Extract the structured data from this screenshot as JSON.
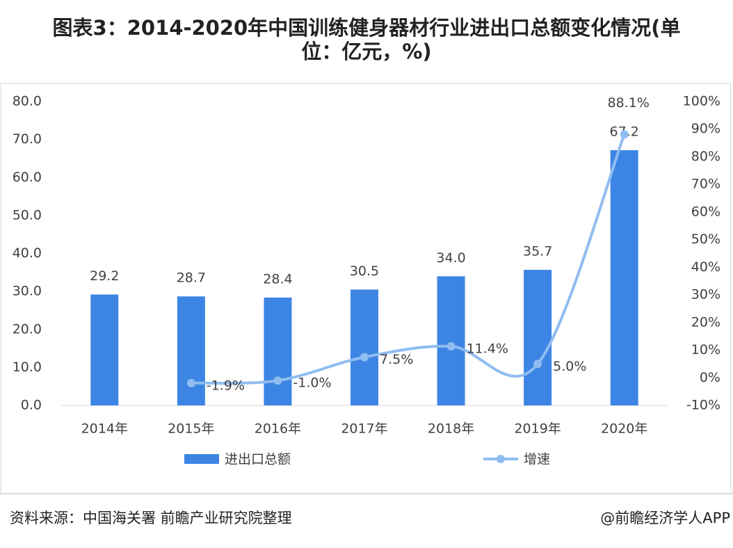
{
  "chart_data": {
    "type": "bar_line",
    "title": "图表3：2014-2020年中国训练健身器材行业进出口总额变化情况(单位：亿元，%)",
    "categories": [
      "2014年",
      "2015年",
      "2016年",
      "2017年",
      "2018年",
      "2019年",
      "2020年"
    ],
    "series": [
      {
        "name": "进出口总额",
        "type": "bar",
        "color": "#3d85e4",
        "values": [
          29.2,
          28.7,
          28.4,
          30.5,
          34.0,
          35.7,
          67.2
        ],
        "value_labels": [
          "29.2",
          "28.7",
          "28.4",
          "30.5",
          "34.0",
          "35.7",
          "67.2"
        ]
      },
      {
        "name": "增速",
        "type": "line",
        "axis": "y2",
        "color": "#8fbdf0",
        "values": [
          null,
          -1.9,
          -1.0,
          7.5,
          11.4,
          5.0,
          88.1
        ],
        "value_labels": [
          null,
          "-1.9%",
          "-1.0%",
          "7.5%",
          "11.4%",
          "5.0%",
          "88.1%"
        ]
      }
    ],
    "ylim": [
      0,
      80
    ],
    "yticks": [
      {
        "value": 0,
        "label": "0.0"
      },
      {
        "value": 10,
        "label": "10.0"
      },
      {
        "value": 20,
        "label": "20.0"
      },
      {
        "value": 30,
        "label": "30.0"
      },
      {
        "value": 40,
        "label": "40.0"
      },
      {
        "value": 50,
        "label": "50.0"
      },
      {
        "value": 60,
        "label": "60.0"
      },
      {
        "value": 70,
        "label": "70.0"
      },
      {
        "value": 80,
        "label": "80.0"
      }
    ],
    "y2lim": [
      -10,
      100
    ],
    "y2ticks": [
      {
        "value": -10,
        "label": "-10%"
      },
      {
        "value": 0,
        "label": "0%"
      },
      {
        "value": 10,
        "label": "10%"
      },
      {
        "value": 20,
        "label": "20%"
      },
      {
        "value": 30,
        "label": "30%"
      },
      {
        "value": 40,
        "label": "40%"
      },
      {
        "value": 50,
        "label": "50%"
      },
      {
        "value": 60,
        "label": "60%"
      },
      {
        "value": 70,
        "label": "70%"
      },
      {
        "value": 80,
        "label": "80%"
      },
      {
        "value": 90,
        "label": "90%"
      },
      {
        "value": 100,
        "label": "100%"
      }
    ],
    "grid": false,
    "legend": "bottom"
  },
  "source": "资料来源：中国海关署 前瞻产业研究院整理",
  "credit": "@前瞻经济学人APP"
}
